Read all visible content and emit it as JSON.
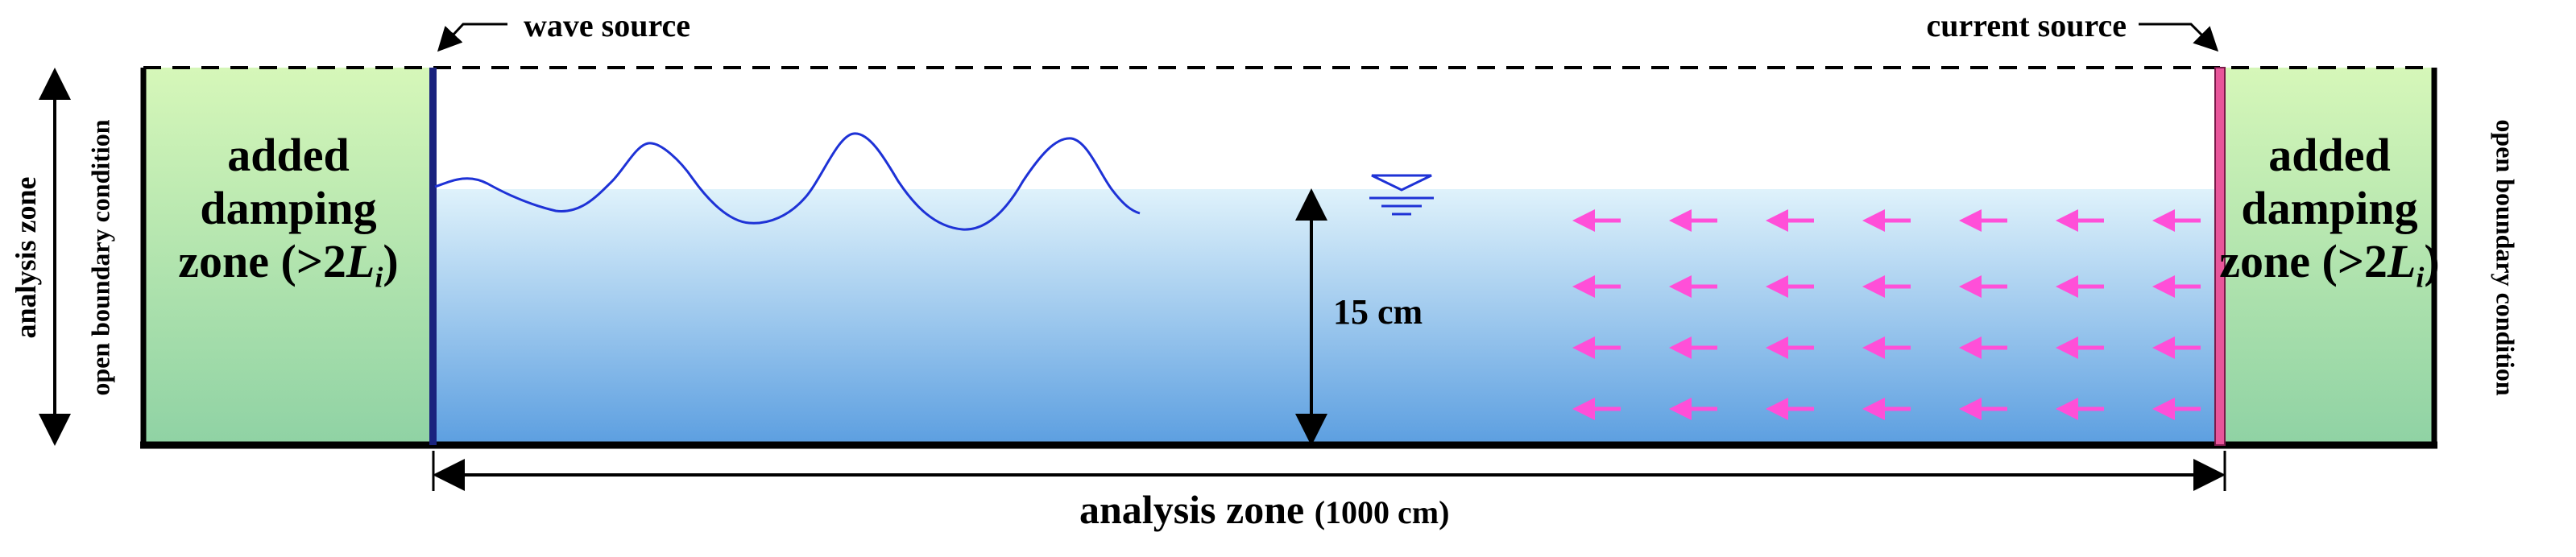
{
  "labels": {
    "wave_source": "wave source",
    "current_source": "current source",
    "left_vertical_outer": "analysis zone",
    "left_vertical_inner": "open boundary condition",
    "right_vertical": "open boundary condition",
    "depth": "15 cm",
    "bottom_main": "analysis zone",
    "bottom_paren": "(1000 cm)"
  },
  "damping_zone": {
    "line1": "added",
    "line2": "damping",
    "line3_prefix": "zone (>2",
    "line3_var": "L",
    "line3_sub": "i",
    "line3_suffix": ")"
  },
  "colors": {
    "damping_fill_top": "#d6f7b9",
    "damping_fill_bottom": "#8fd2a4",
    "water_top": "#dff2fb",
    "water_bottom": "#5b9ee0",
    "wave_line": "#1e32d6",
    "wave_source_bar": "#1a237e",
    "current_source_bar": "#e8559a",
    "current_arrows": "#ff4fd8"
  }
}
